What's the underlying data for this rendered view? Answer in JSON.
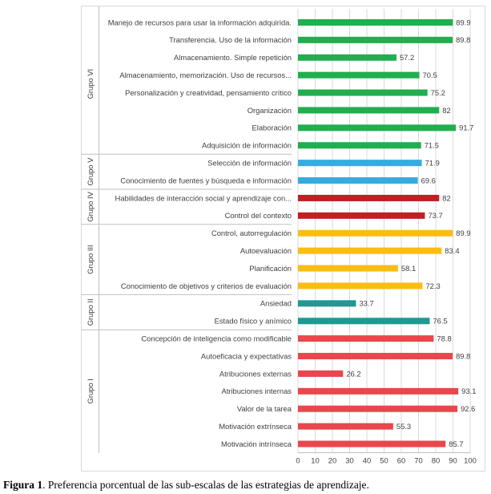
{
  "chart_data": {
    "type": "bar",
    "orientation": "horizontal",
    "xlim": [
      0,
      100
    ],
    "x_ticks": [
      0,
      10,
      20,
      30,
      40,
      50,
      60,
      70,
      80,
      90,
      100
    ],
    "grid": true,
    "colors": {
      "Grupo VI": "#21ae4e",
      "Grupo V": "#37abe0",
      "Grupo IV": "#c11f26",
      "Grupo III": "#fbbd13",
      "Grupo II": "#1f9991",
      "Grupo I": "#e8474c"
    },
    "groups": [
      {
        "name": "Grupo VI",
        "categories": [
          "Manejo de recursos para usar la información adquirida.",
          "Transferencia. Uso de la información",
          "Almacenamiento. Simple repetición",
          "Almacenamiento, memorización. Uso de recursos...",
          "Personalización y creatividad, pensamiento crítico",
          "Organización",
          "Elaboración",
          "Adquisición de información"
        ],
        "values": [
          89.9,
          89.8,
          57.2,
          70.5,
          75.2,
          82,
          91.7,
          71.5
        ]
      },
      {
        "name": "Grupo V",
        "categories": [
          "Selección de información",
          "Conocimiento de fuentes y búsqueda e información"
        ],
        "values": [
          71.9,
          69.6
        ]
      },
      {
        "name": "Grupo IV",
        "categories": [
          "Habilidades de interacción social y aprendizaje con...",
          "Control del contexto"
        ],
        "values": [
          82,
          73.7
        ]
      },
      {
        "name": "Grupo III",
        "categories": [
          "Control, autorregulación",
          "Autoevaluación",
          "Planificación",
          "Conocimiento de objetivos y criterios de evaluación"
        ],
        "values": [
          89.9,
          83.4,
          58.1,
          72.3
        ]
      },
      {
        "name": "Grupo II",
        "categories": [
          "Ansiedad",
          "Estado físico y anímico"
        ],
        "values": [
          33.7,
          76.5
        ]
      },
      {
        "name": "Grupo I",
        "categories": [
          "Concepción de inteligencia como modificable",
          "Autoeficacia y expectativas",
          "Atribuciones externas",
          "Atribuciones internas",
          "Valor de la tarea",
          "Motivación extrínseca",
          "Motivación intrínseca"
        ],
        "values": [
          78.8,
          89.8,
          26.2,
          93.1,
          92.6,
          55.3,
          85.7
        ]
      }
    ]
  },
  "caption": {
    "label": "Figura 1",
    "text": ". Preferencia porcentual de las sub-escalas de las estrategias de aprendizaje."
  }
}
